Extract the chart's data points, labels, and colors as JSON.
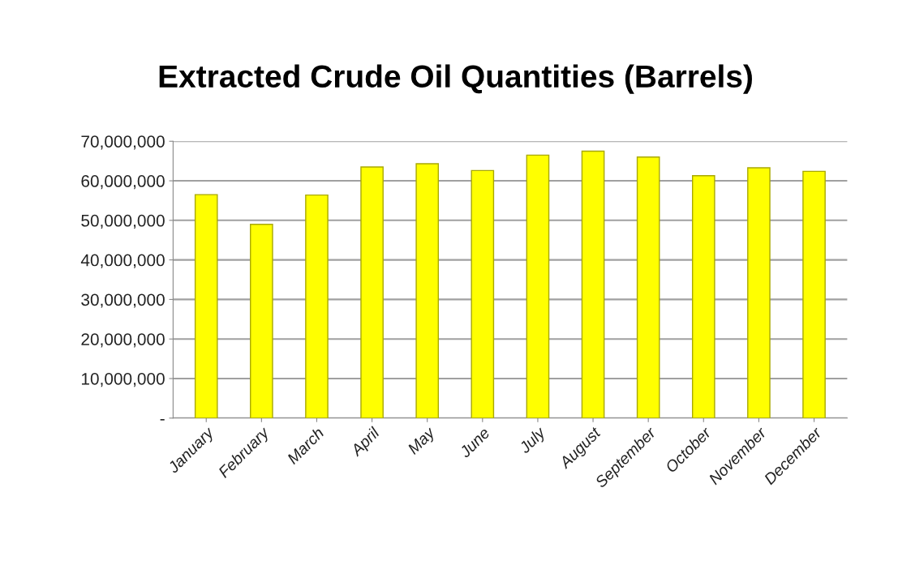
{
  "chart_data": {
    "type": "bar",
    "title": "Extracted Crude Oil Quantities (Barrels)",
    "categories": [
      "January",
      "February",
      "March",
      "April",
      "May",
      "June",
      "July",
      "August",
      "September",
      "October",
      "November",
      "December"
    ],
    "values": [
      56500000,
      49000000,
      56400000,
      63500000,
      64300000,
      62600000,
      66500000,
      67500000,
      66000000,
      61300000,
      63300000,
      62400000
    ],
    "color": "#ffff00",
    "ylim": [
      0,
      70000000
    ],
    "yticks": [
      {
        "value": 0,
        "label": "-"
      },
      {
        "value": 10000000,
        "label": "10,000,000"
      },
      {
        "value": 20000000,
        "label": "20,000,000"
      },
      {
        "value": 30000000,
        "label": "30,000,000"
      },
      {
        "value": 40000000,
        "label": "40,000,000"
      },
      {
        "value": 50000000,
        "label": "50,000,000"
      },
      {
        "value": 60000000,
        "label": "60,000,000"
      },
      {
        "value": 70000000,
        "label": "70,000,000"
      }
    ],
    "grid": "y",
    "legend": false
  }
}
